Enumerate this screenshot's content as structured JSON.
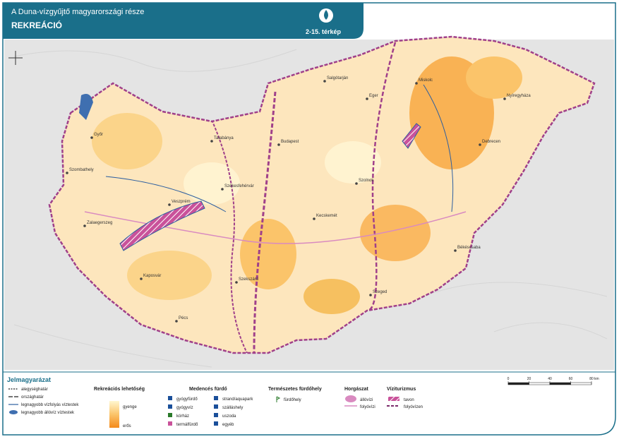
{
  "header": {
    "title": "A Duna-vízgyűjtő magyarországi része",
    "subtitle": "REKREÁCIÓ",
    "map_number": "2-15. térkép"
  },
  "map": {
    "places": [
      "Győr",
      "Budapest",
      "Debrecen",
      "Szeged",
      "Pécs",
      "Miskolc",
      "Szombathely",
      "Kaposvár",
      "Kecskemét",
      "Nyíregyháza",
      "Székesfehérvár",
      "Veszprém",
      "Salgótarján",
      "Eger",
      "Szolnok",
      "Békéscsaba",
      "Zalaegerszeg",
      "Tatabánya",
      "Szekszárd"
    ]
  },
  "legend": {
    "title": "Jelmagyarázat",
    "boundaries": [
      "alegységhatár",
      "országhatár",
      "legnagyobb vízfolyás víztestek",
      "legnagyobb állóvíz víztestek"
    ],
    "recreation": {
      "title": "Rekreációs lehetőség",
      "low": "gyenge",
      "high": "erős"
    },
    "pool_baths": {
      "title": "Medencés fürdő",
      "items": [
        "gyógyfürdő",
        "gyógyvíz",
        "kórház",
        "termálfürdő",
        "strand/aquapark",
        "szálláshely",
        "uszoda",
        "egyéb"
      ]
    },
    "natural_baths": {
      "title": "Természetes fürdőhely",
      "items": [
        "fürdőhely"
      ]
    },
    "fishing": {
      "title": "Horgászat",
      "items": [
        "állóvízi",
        "folyóvízi"
      ]
    },
    "water_tourism": {
      "title": "Víziturizmus",
      "items": [
        "tavon",
        "folyóvízen"
      ]
    },
    "scale": {
      "ticks": [
        0,
        20,
        40,
        60,
        80
      ],
      "unit": "km"
    }
  }
}
